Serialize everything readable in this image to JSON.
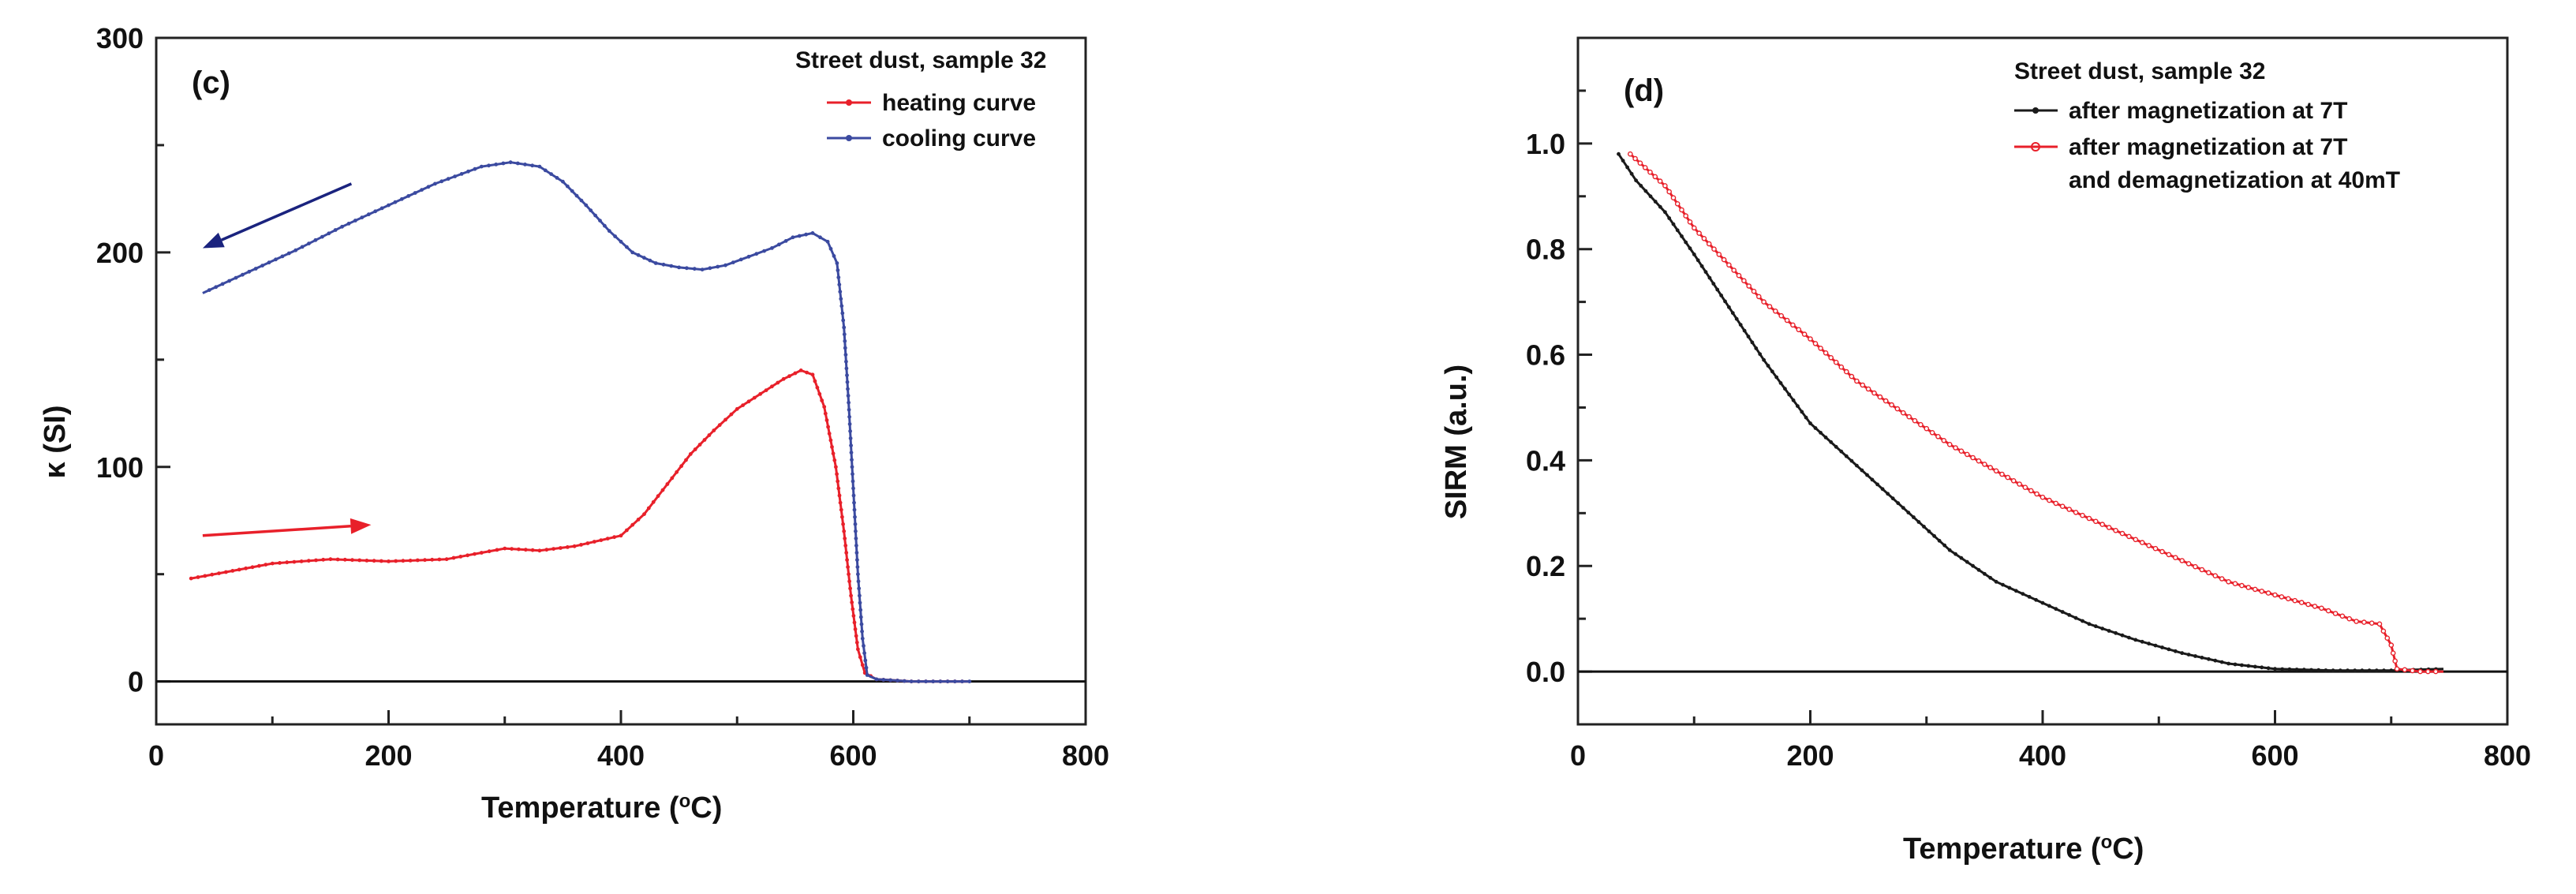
{
  "chart_data": [
    {
      "type": "line",
      "panel_label": "(c)",
      "xlabel_main": "Temperature (",
      "xlabel_sup": "o",
      "xlabel_end": "C)",
      "ylabel": "κ (SI)",
      "xlim": [
        0,
        800
      ],
      "ylim": [
        -20,
        300
      ],
      "xticks": [
        0,
        200,
        400,
        600,
        800
      ],
      "yticks": [
        0,
        100,
        200,
        300
      ],
      "zero_line": true,
      "legend_title": "Street dust, sample 32",
      "colors": {
        "heating": "#e8202a",
        "cooling": "#3b4aa0",
        "arrow_heating": "#e8202a",
        "arrow_cooling": "#1a237e"
      },
      "series": [
        {
          "name": "heating curve",
          "key": "heating",
          "points": [
            [
              30,
              48
            ],
            [
              60,
              51
            ],
            [
              100,
              55
            ],
            [
              150,
              57
            ],
            [
              200,
              56
            ],
            [
              250,
              57
            ],
            [
              280,
              60
            ],
            [
              300,
              62
            ],
            [
              330,
              61
            ],
            [
              360,
              63
            ],
            [
              400,
              68
            ],
            [
              420,
              78
            ],
            [
              440,
              92
            ],
            [
              460,
              106
            ],
            [
              480,
              117
            ],
            [
              500,
              127
            ],
            [
              520,
              134
            ],
            [
              540,
              141
            ],
            [
              555,
              145
            ],
            [
              565,
              143
            ],
            [
              575,
              128
            ],
            [
              585,
              100
            ],
            [
              592,
              70
            ],
            [
              598,
              40
            ],
            [
              604,
              15
            ],
            [
              610,
              4
            ],
            [
              620,
              1
            ],
            [
              650,
              0
            ],
            [
              700,
              0
            ]
          ]
        },
        {
          "name": "cooling curve",
          "key": "cooling",
          "points": [
            [
              700,
              0
            ],
            [
              650,
              0
            ],
            [
              620,
              1
            ],
            [
              612,
              3
            ],
            [
              608,
              20
            ],
            [
              604,
              50
            ],
            [
              600,
              90
            ],
            [
              596,
              130
            ],
            [
              592,
              165
            ],
            [
              586,
              195
            ],
            [
              578,
              205
            ],
            [
              565,
              209
            ],
            [
              548,
              207
            ],
            [
              530,
              202
            ],
            [
              510,
              198
            ],
            [
              490,
              194
            ],
            [
              470,
              192
            ],
            [
              450,
              193
            ],
            [
              430,
              195
            ],
            [
              410,
              200
            ],
            [
              390,
              210
            ],
            [
              370,
              222
            ],
            [
              350,
              233
            ],
            [
              330,
              240
            ],
            [
              305,
              242
            ],
            [
              280,
              240
            ],
            [
              240,
              232
            ],
            [
              200,
              222
            ],
            [
              160,
              212
            ],
            [
              120,
              201
            ],
            [
              80,
              191
            ],
            [
              40,
              181
            ]
          ]
        }
      ],
      "arrows": [
        {
          "series": "cooling",
          "from": [
            168,
            232
          ],
          "to": [
            40,
            202
          ]
        },
        {
          "series": "heating",
          "from": [
            40,
            68
          ],
          "to": [
            185,
            73
          ]
        }
      ]
    },
    {
      "type": "line",
      "panel_label": "(d)",
      "xlabel_main": "Temperature (",
      "xlabel_sup": "o",
      "xlabel_end": "C)",
      "ylabel": "SIRM (a.u.)",
      "xlim": [
        0,
        800
      ],
      "ylim": [
        -0.1,
        1.2
      ],
      "xticks": [
        0,
        200,
        400,
        600,
        800
      ],
      "yticks": [
        0.0,
        0.2,
        0.4,
        0.6,
        0.8,
        1.0
      ],
      "ytick_labels": [
        "0.0",
        "0.2",
        "0.4",
        "0.6",
        "0.8",
        "1.0"
      ],
      "zero_line": true,
      "legend_title": "Street dust, sample 32",
      "colors": {
        "black": "#1a1a1a",
        "red": "#e8202a"
      },
      "series": [
        {
          "name": "after magnetization at 7T",
          "key": "black",
          "points": [
            [
              35,
              0.98
            ],
            [
              50,
              0.93
            ],
            [
              75,
              0.87
            ],
            [
              100,
              0.79
            ],
            [
              130,
              0.69
            ],
            [
              160,
              0.59
            ],
            [
              200,
              0.47
            ],
            [
              240,
              0.39
            ],
            [
              280,
              0.31
            ],
            [
              320,
              0.23
            ],
            [
              360,
              0.17
            ],
            [
              400,
              0.13
            ],
            [
              440,
              0.09
            ],
            [
              480,
              0.06
            ],
            [
              520,
              0.035
            ],
            [
              560,
              0.015
            ],
            [
              600,
              0.005
            ],
            [
              650,
              0.002
            ],
            [
              700,
              0.002
            ],
            [
              745,
              0.005
            ]
          ]
        },
        {
          "name": "after magnetization at 7T",
          "name2": "and demagnetization at 40mT",
          "key": "red",
          "points": [
            [
              45,
              0.98
            ],
            [
              75,
              0.92
            ],
            [
              100,
              0.84
            ],
            [
              130,
              0.77
            ],
            [
              160,
              0.7
            ],
            [
              200,
              0.63
            ],
            [
              240,
              0.55
            ],
            [
              280,
              0.49
            ],
            [
              320,
              0.43
            ],
            [
              360,
              0.38
            ],
            [
              400,
              0.33
            ],
            [
              440,
              0.29
            ],
            [
              480,
              0.25
            ],
            [
              520,
              0.21
            ],
            [
              560,
              0.17
            ],
            [
              600,
              0.145
            ],
            [
              640,
              0.12
            ],
            [
              670,
              0.095
            ],
            [
              690,
              0.09
            ],
            [
              700,
              0.05
            ],
            [
              705,
              0.005
            ],
            [
              725,
              0.0
            ],
            [
              745,
              0.0
            ]
          ]
        }
      ]
    }
  ]
}
